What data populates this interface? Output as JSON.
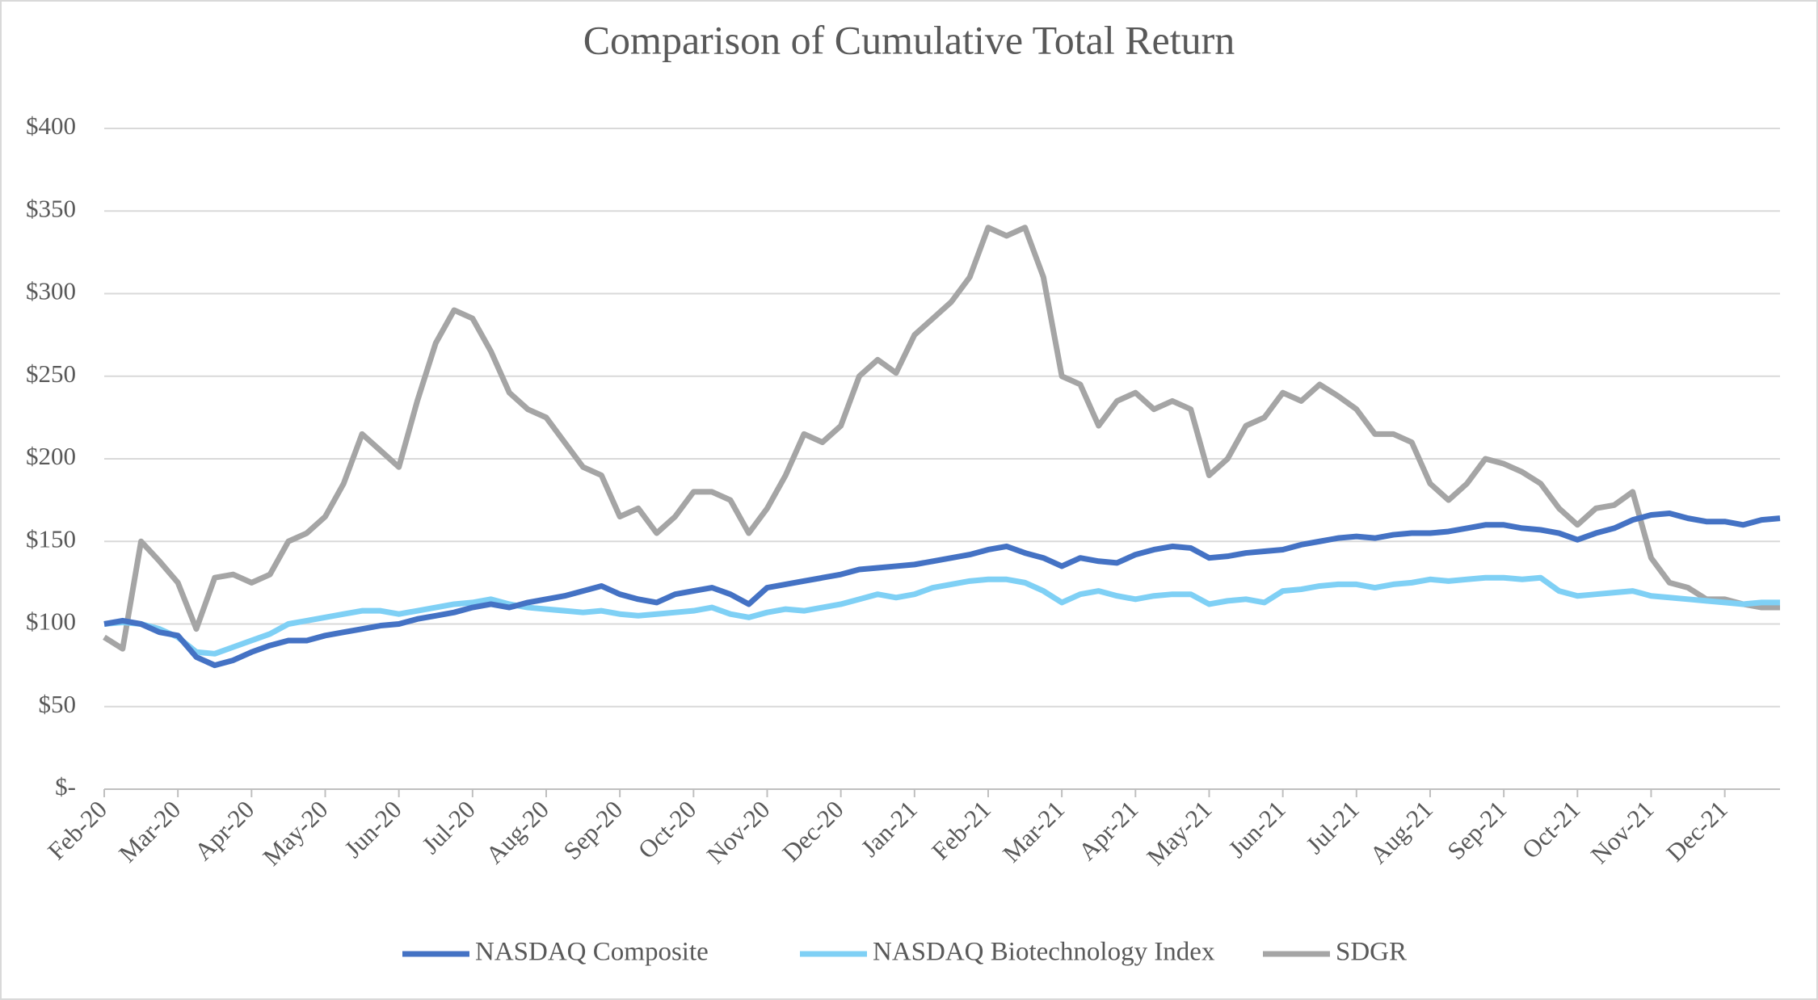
{
  "chart_data": {
    "type": "line",
    "title": "Comparison of Cumulative Total Return",
    "categories": [
      "Feb-20",
      null,
      null,
      null,
      "Mar-20",
      null,
      null,
      null,
      "Apr-20",
      null,
      null,
      null,
      "May-20",
      null,
      null,
      null,
      "Jun-20",
      null,
      null,
      null,
      "Jul-20",
      null,
      null,
      null,
      "Aug-20",
      null,
      null,
      null,
      "Sep-20",
      null,
      null,
      null,
      "Oct-20",
      null,
      null,
      null,
      "Nov-20",
      null,
      null,
      null,
      "Dec-20",
      null,
      null,
      null,
      "Jan-21",
      null,
      null,
      null,
      "Feb-21",
      null,
      null,
      null,
      "Mar-21",
      null,
      null,
      null,
      "Apr-21",
      null,
      null,
      null,
      "May-21",
      null,
      null,
      null,
      "Jun-21",
      null,
      null,
      null,
      "Jul-21",
      null,
      null,
      null,
      "Aug-21",
      null,
      null,
      null,
      "Sep-21",
      null,
      null,
      null,
      "Oct-21",
      null,
      null,
      null,
      "Nov-21",
      null,
      null,
      null,
      "Dec-21",
      null,
      null,
      null
    ],
    "series": [
      {
        "name": "NASDAQ Composite",
        "color": "#4472c4",
        "values": [
          100,
          102,
          100,
          95,
          93,
          80,
          75,
          78,
          83,
          87,
          90,
          90,
          93,
          95,
          97,
          99,
          100,
          103,
          105,
          107,
          110,
          112,
          110,
          113,
          115,
          117,
          120,
          123,
          118,
          115,
          113,
          118,
          120,
          122,
          118,
          112,
          122,
          124,
          126,
          128,
          130,
          133,
          134,
          135,
          136,
          138,
          140,
          142,
          145,
          147,
          143,
          140,
          135,
          140,
          138,
          137,
          142,
          145,
          147,
          146,
          140,
          141,
          143,
          144,
          145,
          148,
          150,
          152,
          153,
          152,
          154,
          155,
          155,
          156,
          158,
          160,
          160,
          158,
          157,
          155,
          151,
          155,
          158,
          163,
          166,
          167,
          164,
          162,
          162,
          160,
          163,
          164
        ]
      },
      {
        "name": "NASDAQ Biotechnology Index",
        "color": "#7fd0f5",
        "values": [
          100,
          101,
          100,
          97,
          92,
          83,
          82,
          86,
          90,
          94,
          100,
          102,
          104,
          106,
          108,
          108,
          106,
          108,
          110,
          112,
          113,
          115,
          112,
          110,
          109,
          108,
          107,
          108,
          106,
          105,
          106,
          107,
          108,
          110,
          106,
          104,
          107,
          109,
          108,
          110,
          112,
          115,
          118,
          116,
          118,
          122,
          124,
          126,
          127,
          127,
          125,
          120,
          113,
          118,
          120,
          117,
          115,
          117,
          118,
          118,
          112,
          114,
          115,
          113,
          120,
          121,
          123,
          124,
          124,
          122,
          124,
          125,
          127,
          126,
          127,
          128,
          128,
          127,
          128,
          120,
          117,
          118,
          119,
          120,
          117,
          116,
          115,
          114,
          113,
          112,
          113,
          113
        ]
      },
      {
        "name": "SDGR",
        "color": "#a5a5a5",
        "values": [
          92,
          85,
          150,
          138,
          125,
          97,
          128,
          130,
          125,
          130,
          150,
          155,
          165,
          185,
          215,
          205,
          195,
          235,
          270,
          290,
          285,
          265,
          240,
          230,
          225,
          210,
          195,
          190,
          165,
          170,
          155,
          165,
          180,
          180,
          175,
          155,
          170,
          190,
          215,
          210,
          220,
          250,
          260,
          252,
          275,
          285,
          295,
          310,
          340,
          335,
          340,
          310,
          250,
          245,
          220,
          235,
          240,
          230,
          235,
          230,
          190,
          200,
          220,
          225,
          240,
          235,
          245,
          238,
          230,
          215,
          215,
          210,
          185,
          175,
          185,
          200,
          197,
          192,
          185,
          170,
          160,
          170,
          172,
          180,
          140,
          125,
          122,
          115,
          115,
          112,
          110,
          110
        ]
      }
    ],
    "ylim": [
      0,
      400
    ],
    "yticks": [
      {
        "value": 0,
        "label": "$-"
      },
      {
        "value": 50,
        "label": "$50"
      },
      {
        "value": 100,
        "label": "$100"
      },
      {
        "value": 150,
        "label": "$150"
      },
      {
        "value": 200,
        "label": "$200"
      },
      {
        "value": 250,
        "label": "$250"
      },
      {
        "value": 300,
        "label": "$300"
      },
      {
        "value": 350,
        "label": "$350"
      },
      {
        "value": 400,
        "label": "$400"
      }
    ],
    "grid": true,
    "legend": "bottom"
  }
}
